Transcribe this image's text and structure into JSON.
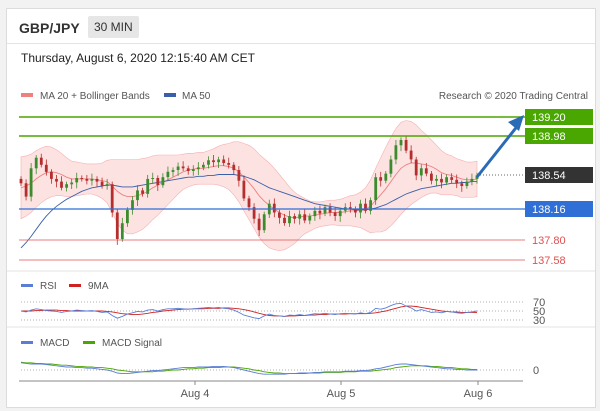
{
  "header": {
    "pair": "GBP/JPY",
    "timeframe": "30 MIN"
  },
  "datetime": "Thursday, August 6, 2020 12:15:40 AM CET",
  "legend": {
    "bollinger": "MA 20 + Bollinger Bands",
    "ma50": "MA 50",
    "credit": "Research © 2020 Trading Central",
    "rsi": "RSI",
    "rsi_ma": "9MA",
    "macd": "MACD",
    "macd_signal": "MACD Signal"
  },
  "colors": {
    "bollinger": "#f08080",
    "band_fill": "#fde2e2",
    "ma50": "#3a5fa8",
    "resistance": "#4aa600",
    "support_blue": "#2f6fd6",
    "support_red": "#e05050",
    "current": "#333333",
    "up": "#3c8b2d",
    "down": "#b52d2d",
    "rsi": "#5a7ed6",
    "rsi_ma": "#d02020",
    "macd": "#5a7ed6",
    "macd_signal": "#4aa600",
    "arrow": "#2a6bb5"
  },
  "chart_data": [
    {
      "type": "candlestick",
      "name": "price",
      "xticks": [
        "Aug 4",
        "Aug 5",
        "Aug 6"
      ],
      "ylim": [
        137.5,
        139.35
      ],
      "levels": {
        "r2": "139.20",
        "r1": "138.98",
        "current": "138.54",
        "s1": "138.16",
        "s2": "137.80",
        "s3": "137.58"
      },
      "closes": [
        138.45,
        138.3,
        138.62,
        138.74,
        138.66,
        138.58,
        138.5,
        138.47,
        138.4,
        138.44,
        138.46,
        138.51,
        138.5,
        138.48,
        138.5,
        138.47,
        138.42,
        138.44,
        138.12,
        137.82,
        138.0,
        138.15,
        138.26,
        138.37,
        138.33,
        138.5,
        138.51,
        138.43,
        138.52,
        138.58,
        138.6,
        138.64,
        138.62,
        138.59,
        138.61,
        138.63,
        138.66,
        138.71,
        138.69,
        138.72,
        138.68,
        138.66,
        138.6,
        138.48,
        138.28,
        138.18,
        138.05,
        137.92,
        138.1,
        138.22,
        138.12,
        138.06,
        138.0,
        138.08,
        138.05,
        138.1,
        138.03,
        138.08,
        138.14,
        138.11,
        138.18,
        138.12,
        138.08,
        138.14,
        138.18,
        138.16,
        138.12,
        138.22,
        138.14,
        138.26,
        138.52,
        138.48,
        138.56,
        138.72,
        138.88,
        138.94,
        138.82,
        138.72,
        138.54,
        138.62,
        138.56,
        138.48,
        138.5,
        138.46,
        138.52,
        138.49,
        138.45,
        138.42,
        138.47,
        138.5,
        138.54
      ],
      "opens": [
        138.5,
        138.45,
        138.3,
        138.62,
        138.74,
        138.66,
        138.58,
        138.5,
        138.47,
        138.4,
        138.44,
        138.46,
        138.51,
        138.5,
        138.48,
        138.5,
        138.47,
        138.42,
        138.44,
        138.12,
        137.82,
        138.0,
        138.15,
        138.26,
        138.37,
        138.33,
        138.5,
        138.51,
        138.43,
        138.52,
        138.58,
        138.6,
        138.64,
        138.62,
        138.59,
        138.61,
        138.63,
        138.66,
        138.71,
        138.69,
        138.72,
        138.68,
        138.66,
        138.6,
        138.48,
        138.28,
        138.18,
        138.05,
        137.92,
        138.1,
        138.22,
        138.12,
        138.06,
        138.0,
        138.08,
        138.05,
        138.1,
        138.03,
        138.08,
        138.14,
        138.11,
        138.18,
        138.12,
        138.08,
        138.14,
        138.18,
        138.16,
        138.12,
        138.22,
        138.14,
        138.26,
        138.52,
        138.48,
        138.56,
        138.72,
        138.88,
        138.94,
        138.82,
        138.72,
        138.54,
        138.62,
        138.56,
        138.48,
        138.5,
        138.46,
        138.52,
        138.49,
        138.45,
        138.42,
        138.47,
        138.5
      ],
      "ma20": [
        138.4,
        138.42,
        138.45,
        138.5,
        138.54,
        138.57,
        138.58,
        138.57,
        138.55,
        138.52,
        138.5,
        138.5,
        138.5,
        138.5,
        138.5,
        138.49,
        138.48,
        138.47,
        138.42,
        138.36,
        138.32,
        138.3,
        138.3,
        138.31,
        138.33,
        138.36,
        138.4,
        138.43,
        138.46,
        138.49,
        138.52,
        138.55,
        138.58,
        138.6,
        138.61,
        138.62,
        138.62,
        138.63,
        138.64,
        138.65,
        138.65,
        138.64,
        138.62,
        138.58,
        138.52,
        138.46,
        138.39,
        138.31,
        138.25,
        138.2,
        138.16,
        138.12,
        138.09,
        138.07,
        138.06,
        138.07,
        138.08,
        138.08,
        138.09,
        138.1,
        138.11,
        138.12,
        138.12,
        138.12,
        138.13,
        138.14,
        138.14,
        138.15,
        138.16,
        138.19,
        138.26,
        138.32,
        138.39,
        138.47,
        138.55,
        138.62,
        138.66,
        138.68,
        138.68,
        138.67,
        138.66,
        138.64,
        138.61,
        138.57,
        138.55,
        138.54,
        138.52,
        138.5,
        138.49,
        138.49,
        138.5
      ],
      "ma50": [
        137.72,
        137.78,
        137.85,
        137.93,
        138.01,
        138.08,
        138.14,
        138.19,
        138.23,
        138.27,
        138.3,
        138.33,
        138.36,
        138.38,
        138.4,
        138.41,
        138.42,
        138.43,
        138.43,
        138.42,
        138.41,
        138.41,
        138.41,
        138.42,
        138.43,
        138.44,
        138.45,
        138.46,
        138.47,
        138.48,
        138.49,
        138.5,
        138.51,
        138.52,
        138.52,
        138.53,
        138.53,
        138.54,
        138.54,
        138.55,
        138.55,
        138.55,
        138.55,
        138.54,
        138.53,
        138.51,
        138.49,
        138.46,
        138.43,
        138.4,
        138.38,
        138.36,
        138.34,
        138.32,
        138.3,
        138.28,
        138.26,
        138.24,
        138.22,
        138.21,
        138.2,
        138.19,
        138.18,
        138.17,
        138.16,
        138.16,
        138.15,
        138.15,
        138.15,
        138.16,
        138.17,
        138.19,
        138.21,
        138.24,
        138.27,
        138.3,
        138.33,
        138.35,
        138.37,
        138.39,
        138.4,
        138.41,
        138.42,
        138.43,
        138.44,
        138.45,
        138.45,
        138.46,
        138.46,
        138.47,
        138.47
      ],
      "band_width": [
        0.35,
        0.34,
        0.33,
        0.32,
        0.31,
        0.3,
        0.28,
        0.26,
        0.24,
        0.22,
        0.2,
        0.19,
        0.18,
        0.17,
        0.17,
        0.18,
        0.2,
        0.24,
        0.3,
        0.36,
        0.4,
        0.42,
        0.42,
        0.41,
        0.4,
        0.38,
        0.36,
        0.34,
        0.31,
        0.28,
        0.25,
        0.22,
        0.2,
        0.19,
        0.18,
        0.18,
        0.18,
        0.19,
        0.2,
        0.22,
        0.24,
        0.26,
        0.3,
        0.34,
        0.38,
        0.42,
        0.45,
        0.47,
        0.48,
        0.48,
        0.46,
        0.43,
        0.39,
        0.34,
        0.29,
        0.24,
        0.2,
        0.17,
        0.15,
        0.14,
        0.14,
        0.14,
        0.14,
        0.15,
        0.16,
        0.17,
        0.18,
        0.2,
        0.24,
        0.3,
        0.36,
        0.42,
        0.47,
        0.5,
        0.52,
        0.52,
        0.5,
        0.47,
        0.43,
        0.38,
        0.34,
        0.3,
        0.27,
        0.25,
        0.23,
        0.22,
        0.21,
        0.21,
        0.2,
        0.2,
        0.2
      ],
      "projection": [
        138.54,
        139.2
      ]
    },
    {
      "type": "line",
      "name": "rsi",
      "ylim": [
        25,
        80
      ],
      "yticks": [
        "70",
        "50",
        "30"
      ],
      "rsi": [
        50,
        48,
        52,
        55,
        53,
        51,
        50,
        49,
        47,
        49,
        50,
        52,
        51,
        50,
        51,
        49,
        47,
        48,
        40,
        34,
        38,
        43,
        46,
        49,
        48,
        52,
        53,
        50,
        53,
        55,
        55,
        56,
        55,
        54,
        55,
        56,
        57,
        58,
        57,
        58,
        56,
        55,
        52,
        47,
        41,
        38,
        35,
        33,
        39,
        43,
        40,
        39,
        38,
        41,
        40,
        42,
        40,
        42,
        44,
        43,
        45,
        43,
        42,
        44,
        45,
        44,
        43,
        46,
        44,
        47,
        56,
        54,
        57,
        62,
        66,
        67,
        61,
        57,
        50,
        53,
        50,
        47,
        48,
        46,
        49,
        48,
        46,
        45,
        47,
        48,
        50
      ],
      "rsi_ma": [
        50,
        50,
        50,
        51,
        51,
        52,
        52,
        52,
        51,
        51,
        50,
        50,
        50,
        50,
        50,
        50,
        50,
        49,
        48,
        46,
        44,
        43,
        42,
        42,
        43,
        45,
        47,
        48,
        50,
        51,
        52,
        53,
        54,
        54,
        55,
        55,
        55,
        56,
        56,
        56,
        57,
        57,
        56,
        55,
        53,
        51,
        48,
        45,
        42,
        40,
        39,
        39,
        38,
        39,
        39,
        40,
        40,
        41,
        41,
        42,
        42,
        43,
        43,
        43,
        43,
        44,
        44,
        44,
        44,
        45,
        46,
        48,
        50,
        53,
        56,
        59,
        61,
        61,
        60,
        58,
        56,
        54,
        52,
        50,
        49,
        48,
        48,
        47,
        47,
        47,
        47
      ]
    },
    {
      "type": "line",
      "name": "macd",
      "ylim": [
        -0.2,
        0.2
      ],
      "yticks": [
        "0"
      ],
      "macd": [
        0.12,
        0.11,
        0.1,
        0.1,
        0.1,
        0.09,
        0.08,
        0.07,
        0.06,
        0.05,
        0.05,
        0.04,
        0.04,
        0.03,
        0.03,
        0.02,
        0.01,
        0.0,
        -0.02,
        -0.05,
        -0.06,
        -0.06,
        -0.05,
        -0.04,
        -0.03,
        -0.02,
        -0.01,
        -0.01,
        0.0,
        0.01,
        0.02,
        0.03,
        0.04,
        0.04,
        0.04,
        0.05,
        0.05,
        0.05,
        0.06,
        0.06,
        0.06,
        0.05,
        0.04,
        0.02,
        0.0,
        -0.02,
        -0.04,
        -0.06,
        -0.07,
        -0.07,
        -0.07,
        -0.07,
        -0.07,
        -0.06,
        -0.06,
        -0.05,
        -0.05,
        -0.05,
        -0.04,
        -0.04,
        -0.03,
        -0.03,
        -0.03,
        -0.03,
        -0.02,
        -0.02,
        -0.02,
        -0.01,
        -0.01,
        0.0,
        0.02,
        0.03,
        0.05,
        0.07,
        0.09,
        0.1,
        0.1,
        0.09,
        0.08,
        0.07,
        0.06,
        0.05,
        0.04,
        0.03,
        0.02,
        0.02,
        0.01,
        0.01,
        0.0,
        0.0,
        0.0
      ],
      "signal": [
        0.13,
        0.12,
        0.12,
        0.11,
        0.11,
        0.1,
        0.1,
        0.09,
        0.08,
        0.08,
        0.07,
        0.06,
        0.06,
        0.05,
        0.05,
        0.04,
        0.04,
        0.03,
        0.02,
        0.0,
        -0.01,
        -0.02,
        -0.03,
        -0.03,
        -0.03,
        -0.03,
        -0.03,
        -0.02,
        -0.02,
        -0.01,
        0.0,
        0.0,
        0.01,
        0.02,
        0.02,
        0.03,
        0.03,
        0.04,
        0.04,
        0.04,
        0.05,
        0.05,
        0.05,
        0.04,
        0.03,
        0.02,
        0.0,
        -0.01,
        -0.03,
        -0.04,
        -0.05,
        -0.05,
        -0.06,
        -0.06,
        -0.06,
        -0.06,
        -0.06,
        -0.05,
        -0.05,
        -0.05,
        -0.04,
        -0.04,
        -0.04,
        -0.04,
        -0.03,
        -0.03,
        -0.03,
        -0.02,
        -0.02,
        -0.02,
        -0.01,
        0.0,
        0.01,
        0.02,
        0.04,
        0.05,
        0.06,
        0.07,
        0.07,
        0.07,
        0.07,
        0.06,
        0.06,
        0.05,
        0.04,
        0.04,
        0.03,
        0.02,
        0.02,
        0.01,
        0.01
      ]
    }
  ]
}
